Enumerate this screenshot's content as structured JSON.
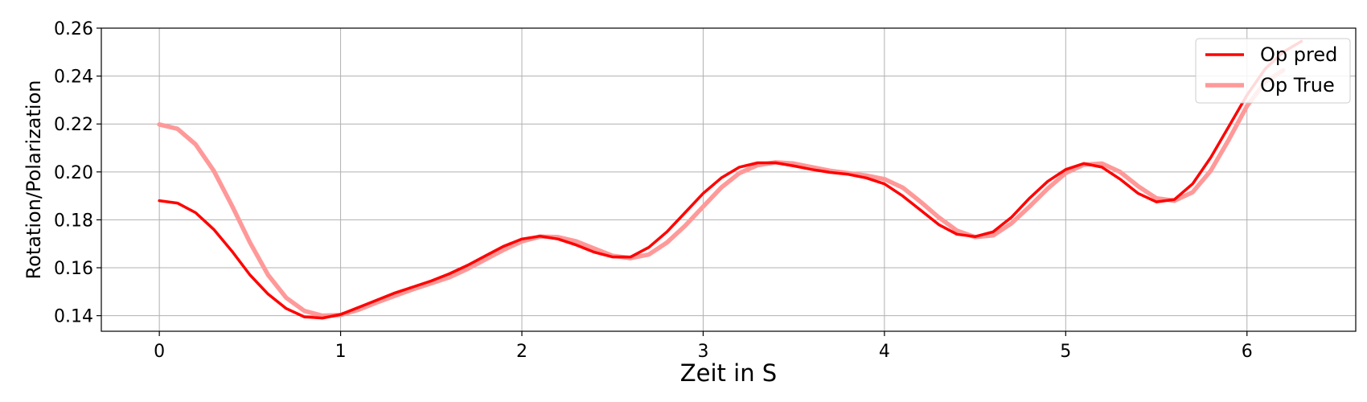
{
  "chart_data": {
    "type": "line",
    "title": "",
    "xlabel": "Zeit in S",
    "ylabel": "Rotation/Polarization",
    "xlim": [
      -0.32,
      6.6
    ],
    "ylim": [
      0.1335,
      0.26
    ],
    "xticks": [
      0,
      1,
      2,
      3,
      4,
      5,
      6
    ],
    "xtick_labels": [
      "0",
      "1",
      "2",
      "3",
      "4",
      "5",
      "6"
    ],
    "yticks": [
      0.14,
      0.16,
      0.18,
      0.2,
      0.22,
      0.24,
      0.26
    ],
    "ytick_labels": [
      "0.14",
      "0.16",
      "0.18",
      "0.20",
      "0.22",
      "0.24",
      "0.26"
    ],
    "grid": true,
    "legend_position": "top-right",
    "series": [
      {
        "name": "Op pred",
        "color": "#ff0000",
        "points": [
          [
            0.0,
            0.188
          ],
          [
            0.1,
            0.187
          ],
          [
            0.2,
            0.183
          ],
          [
            0.3,
            0.176
          ],
          [
            0.4,
            0.167
          ],
          [
            0.5,
            0.157
          ],
          [
            0.6,
            0.149
          ],
          [
            0.7,
            0.143
          ],
          [
            0.8,
            0.1395
          ],
          [
            0.9,
            0.139
          ],
          [
            1.0,
            0.1405
          ],
          [
            1.1,
            0.1435
          ],
          [
            1.2,
            0.1465
          ],
          [
            1.3,
            0.1495
          ],
          [
            1.4,
            0.152
          ],
          [
            1.5,
            0.1545
          ],
          [
            1.6,
            0.1575
          ],
          [
            1.7,
            0.161
          ],
          [
            1.8,
            0.165
          ],
          [
            1.9,
            0.169
          ],
          [
            2.0,
            0.172
          ],
          [
            2.1,
            0.1732
          ],
          [
            2.2,
            0.172
          ],
          [
            2.3,
            0.1695
          ],
          [
            2.4,
            0.1665
          ],
          [
            2.5,
            0.1645
          ],
          [
            2.6,
            0.1645
          ],
          [
            2.7,
            0.1685
          ],
          [
            2.8,
            0.175
          ],
          [
            2.9,
            0.183
          ],
          [
            3.0,
            0.191
          ],
          [
            3.1,
            0.1975
          ],
          [
            3.2,
            0.202
          ],
          [
            3.3,
            0.2038
          ],
          [
            3.4,
            0.2038
          ],
          [
            3.5,
            0.2025
          ],
          [
            3.6,
            0.201
          ],
          [
            3.7,
            0.1998
          ],
          [
            3.8,
            0.199
          ],
          [
            3.9,
            0.1975
          ],
          [
            4.0,
            0.195
          ],
          [
            4.1,
            0.19
          ],
          [
            4.2,
            0.184
          ],
          [
            4.3,
            0.178
          ],
          [
            4.4,
            0.174
          ],
          [
            4.5,
            0.173
          ],
          [
            4.6,
            0.175
          ],
          [
            4.7,
            0.181
          ],
          [
            4.8,
            0.189
          ],
          [
            4.9,
            0.196
          ],
          [
            5.0,
            0.201
          ],
          [
            5.1,
            0.2035
          ],
          [
            5.2,
            0.202
          ],
          [
            5.3,
            0.197
          ],
          [
            5.4,
            0.191
          ],
          [
            5.5,
            0.1875
          ],
          [
            5.6,
            0.1885
          ],
          [
            5.7,
            0.195
          ],
          [
            5.8,
            0.206
          ],
          [
            5.9,
            0.219
          ],
          [
            6.0,
            0.232
          ],
          [
            6.1,
            0.243
          ],
          [
            6.2,
            0.25
          ],
          [
            6.3,
            0.2545
          ]
        ]
      },
      {
        "name": "Op True",
        "color": "#ff9999",
        "points": [
          [
            0.0,
            0.2198
          ],
          [
            0.1,
            0.218
          ],
          [
            0.2,
            0.2115
          ],
          [
            0.3,
            0.2005
          ],
          [
            0.4,
            0.186
          ],
          [
            0.5,
            0.1705
          ],
          [
            0.6,
            0.157
          ],
          [
            0.7,
            0.1475
          ],
          [
            0.8,
            0.142
          ],
          [
            0.9,
            0.14
          ],
          [
            1.0,
            0.1403
          ],
          [
            1.1,
            0.1425
          ],
          [
            1.2,
            0.1455
          ],
          [
            1.3,
            0.1483
          ],
          [
            1.4,
            0.151
          ],
          [
            1.5,
            0.1535
          ],
          [
            1.6,
            0.156
          ],
          [
            1.7,
            0.1595
          ],
          [
            1.8,
            0.1635
          ],
          [
            1.9,
            0.1675
          ],
          [
            2.0,
            0.171
          ],
          [
            2.1,
            0.173
          ],
          [
            2.2,
            0.1728
          ],
          [
            2.3,
            0.171
          ],
          [
            2.4,
            0.168
          ],
          [
            2.5,
            0.165
          ],
          [
            2.6,
            0.164
          ],
          [
            2.7,
            0.1655
          ],
          [
            2.8,
            0.1705
          ],
          [
            2.9,
            0.1775
          ],
          [
            3.0,
            0.1855
          ],
          [
            3.1,
            0.1935
          ],
          [
            3.2,
            0.1995
          ],
          [
            3.3,
            0.2028
          ],
          [
            3.4,
            0.204
          ],
          [
            3.5,
            0.2035
          ],
          [
            3.6,
            0.202
          ],
          [
            3.7,
            0.2005
          ],
          [
            3.8,
            0.1995
          ],
          [
            3.9,
            0.1985
          ],
          [
            4.0,
            0.197
          ],
          [
            4.1,
            0.1935
          ],
          [
            4.2,
            0.1875
          ],
          [
            4.3,
            0.181
          ],
          [
            4.4,
            0.1755
          ],
          [
            4.5,
            0.1728
          ],
          [
            4.6,
            0.1735
          ],
          [
            4.7,
            0.1785
          ],
          [
            4.8,
            0.1855
          ],
          [
            4.9,
            0.193
          ],
          [
            5.0,
            0.1995
          ],
          [
            5.1,
            0.203
          ],
          [
            5.2,
            0.2035
          ],
          [
            5.3,
            0.2
          ],
          [
            5.4,
            0.194
          ],
          [
            5.5,
            0.189
          ],
          [
            5.6,
            0.188
          ],
          [
            5.7,
            0.1915
          ],
          [
            5.8,
            0.2005
          ],
          [
            5.9,
            0.2135
          ],
          [
            6.0,
            0.2275
          ],
          [
            6.1,
            0.2375
          ],
          [
            6.2,
            0.2425
          ]
        ]
      }
    ]
  }
}
